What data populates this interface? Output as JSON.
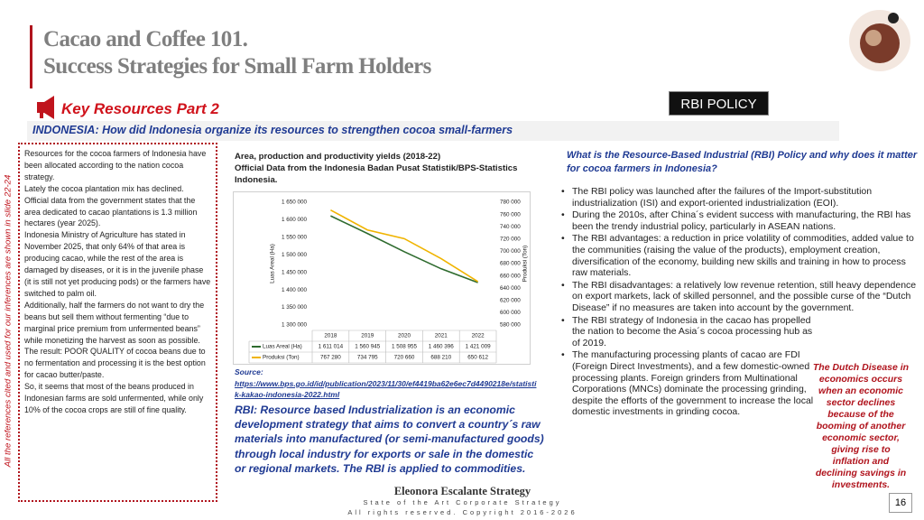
{
  "header": {
    "title_line1": "Cacao and Coffee 101.",
    "title_line2": "Success Strategies for Small Farm Holders",
    "section": "Key Resources Part 2",
    "badge": "RBI POLICY",
    "banner": "INDONESIA: How did Indonesia organize its resources to strengthen cocoa small-farmers"
  },
  "vertical_note": "All the references cited and used for our inferences are shown in slide 22-24",
  "left_box": {
    "paragraphs": [
      "Resources for the cocoa farmers of Indonesia have been allocated according to the nation cocoa strategy.",
      "Lately the cocoa plantation mix has declined.",
      "Official data from the government states that the area dedicated to cacao plantations is 1.3 million hectares (year 2025).",
      "Indonesia Ministry of Agriculture has stated in November 2025, that only 64% of that area is producing cacao, while the rest of the area is damaged by diseases, or it is in the juvenile phase (it is still not yet producing pods) or the farmers have switched to palm oil.",
      "Additionally, half the farmers do not want to dry the beans but sell them without fermenting “due to marginal price premium from unfermented beans” while monetizing the harvest as soon as possible.",
      "The result: POOR QUALITY of cocoa beans due to no fermentation and processing it is the best option for cacao butter/paste.",
      "So, it seems that most of the beans produced in Indonesian farms are sold unfermented, while only 10% of the cocoa crops are still of fine quality."
    ]
  },
  "chart": {
    "type": "line",
    "title": "Area, production and productivity yields (2018-22)",
    "subtitle": "Official Data from the Indonesia Badan Pusat Statistik/BPS-Statistics Indonesia.",
    "categories": [
      "2018",
      "2019",
      "2020",
      "2021",
      "2022"
    ],
    "ylabel": "Luas Areal (Ha)",
    "y2label": "Produksi (Ton)",
    "ylim": [
      1300000,
      1650000
    ],
    "yticks": [
      {
        "value": 1300000,
        "label": "1 300 000"
      },
      {
        "value": 1350000,
        "label": "1 350 000"
      },
      {
        "value": 1400000,
        "label": "1 400 000"
      },
      {
        "value": 1450000,
        "label": "1 450 000"
      },
      {
        "value": 1500000,
        "label": "1 500 000"
      },
      {
        "value": 1550000,
        "label": "1 550 000"
      },
      {
        "value": 1600000,
        "label": "1 600 000"
      },
      {
        "value": 1650000,
        "label": "1 650 000"
      }
    ],
    "y2lim": [
      580000,
      780000
    ],
    "y2ticks": [
      {
        "value": 580000,
        "label": "580 000"
      },
      {
        "value": 600000,
        "label": "600 000"
      },
      {
        "value": 620000,
        "label": "620 000"
      },
      {
        "value": 640000,
        "label": "640 000"
      },
      {
        "value": 660000,
        "label": "660 000"
      },
      {
        "value": 680000,
        "label": "680 000"
      },
      {
        "value": 700000,
        "label": "700 000"
      },
      {
        "value": 720000,
        "label": "720 000"
      },
      {
        "value": 740000,
        "label": "740 000"
      },
      {
        "value": 760000,
        "label": "760 000"
      },
      {
        "value": 780000,
        "label": "780 000"
      }
    ],
    "series": [
      {
        "name": "Luas Areal (Ha)",
        "color": "#2e6b2e",
        "values": [
          1611014,
          1560945,
          1508955,
          1460396,
          1421009
        ],
        "value_labels": [
          "1 611 014",
          "1 560 945",
          "1 508 955",
          "1 460 396",
          "1 421 009"
        ]
      },
      {
        "name": "Produksi (Ton)",
        "color": "#f0b400",
        "axis": "y2",
        "values": [
          767280,
          734795,
          720660,
          688210,
          650612
        ],
        "value_labels": [
          "767 280",
          "734 795",
          "720 660",
          "688 210",
          "650 612"
        ]
      }
    ]
  },
  "source": {
    "label": "Source:",
    "url": "https://www.bps.go.id/id/publication/2023/11/30/ef4419ba62e6ec7d4490218e/statistik-kakao-indonesia-2022.html"
  },
  "rbi_definition": "RBI: Resource based Industrialization is an economic development strategy that aims to convert a country´s raw materials into manufactured (or semi-manufactured goods) through local industry for exports or sale in the domestic or regional markets. The RBI is applied to commodities.",
  "right": {
    "question": "What is the Resource-Based Industrial (RBI) Policy and why does it matter for cocoa farmers in Indonesia?",
    "bullets": [
      "The RBI policy was launched after the failures of the Import-substitution industrialization (ISI) and export-oriented industrialization (EOI).",
      "During the 2010s, after China´s evident success with manufacturing, the RBI has been the trendy industrial policy, particularly in ASEAN nations.",
      "The RBI advantages: a reduction in price volatility of commodities, added value to the communities (raising the value of the products), employment creation, diversification of the economy, building new skills and training in how to process raw materials.",
      "The RBI disadvantages: a relatively low revenue retention, still heavy dependence on export markets, lack of skilled personnel, and the possible curse of the “Dutch Disease” if no measures are taken into account by the government.",
      "The RBI strategy of Indonesia in the cacao has propelled the nation to become the Asia´s cocoa processing hub as of 2019.",
      "The manufacturing processing plants of cacao are FDI (Foreign Direct Investments), and a few domestic-owned processing plants. Foreign grinders from Multinational Corporations (MNCs) dominate the processing grinding, despite the efforts of the government to increase the local domestic investments in grinding cocoa."
    ],
    "dutch_disease": "The Dutch Disease in economics occurs when an economic sector declines because of the booming of another economic sector, giving rise to inflation and declining savings in investments."
  },
  "footer": {
    "brand": "Eleonora Escalante Strategy",
    "tagline": "State of the Art Corporate Strategy",
    "copyright": "All rights reserved. Copyright 2016-2026",
    "page": "16"
  }
}
